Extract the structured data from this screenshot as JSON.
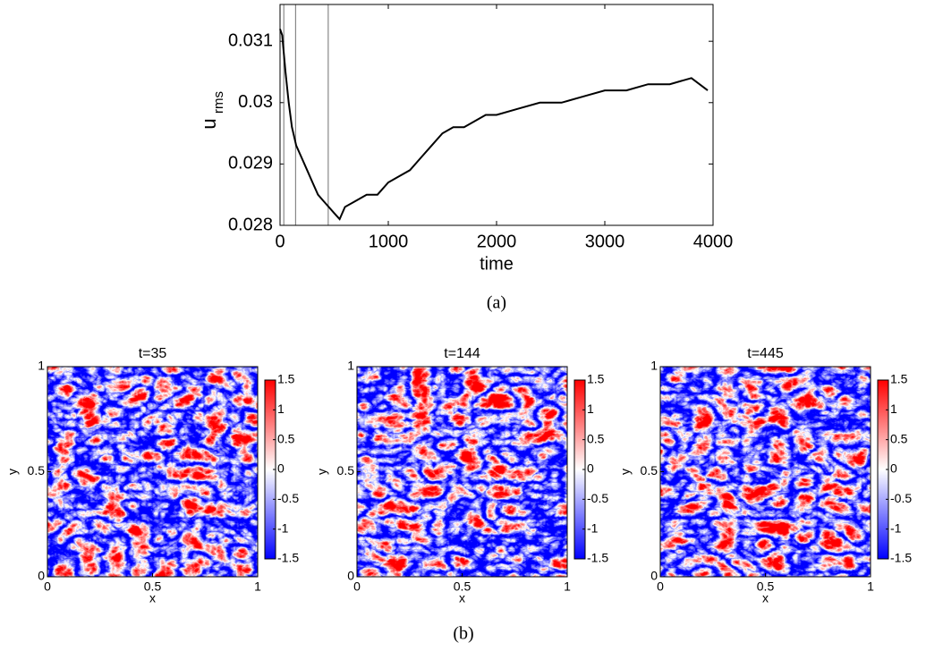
{
  "chart_data": [
    {
      "type": "line",
      "xlabel": "time",
      "ylabel": "u",
      "ylabel_sub": "rms",
      "x": [
        0,
        20,
        50,
        80,
        110,
        150,
        200,
        250,
        300,
        350,
        400,
        450,
        500,
        550,
        600,
        700,
        800,
        900,
        1000,
        1100,
        1200,
        1300,
        1400,
        1500,
        1600,
        1700,
        1800,
        1900,
        2000,
        2200,
        2400,
        2600,
        2800,
        3000,
        3200,
        3400,
        3600,
        3800,
        3950
      ],
      "values": [
        0.0312,
        0.0311,
        0.0305,
        0.03,
        0.0296,
        0.0293,
        0.0291,
        0.0289,
        0.0287,
        0.0285,
        0.0284,
        0.0283,
        0.0282,
        0.0281,
        0.0283,
        0.0284,
        0.0285,
        0.0285,
        0.0287,
        0.0288,
        0.0289,
        0.0291,
        0.0293,
        0.0295,
        0.0296,
        0.0296,
        0.0297,
        0.0298,
        0.0298,
        0.0299,
        0.03,
        0.03,
        0.0301,
        0.0302,
        0.0302,
        0.0303,
        0.0303,
        0.0304,
        0.0302
      ],
      "color": "#000000",
      "vlines": [
        35,
        144,
        445
      ],
      "vline_color": "#888888",
      "xlim": [
        0,
        4000
      ],
      "xticks": [
        0,
        1000,
        2000,
        3000,
        4000
      ],
      "ylim": [
        0.028,
        0.0316
      ],
      "yticks": [
        0.028,
        0.029,
        0.03,
        0.031
      ]
    },
    {
      "type": "heatmap",
      "title": "t=35",
      "xlabel": "x",
      "ylabel": "y",
      "seed": 3,
      "xlim": [
        0,
        1
      ],
      "xticks": [
        0,
        0.5,
        1
      ],
      "ylim": [
        0,
        1
      ],
      "yticks": [
        0,
        0.5,
        1
      ],
      "colorbar_lim": [
        -1.5,
        1.5
      ],
      "colorbar_ticks": [
        -1.5,
        -1,
        -0.5,
        0,
        0.5,
        1,
        1.5
      ],
      "colormap": [
        "#0000ff",
        "#ffffff",
        "#ff0000"
      ]
    },
    {
      "type": "heatmap",
      "title": "t=144",
      "xlabel": "x",
      "ylabel": "y",
      "seed": 11,
      "xlim": [
        0,
        1
      ],
      "xticks": [
        0,
        0.5,
        1
      ],
      "ylim": [
        0,
        1
      ],
      "yticks": [
        0,
        0.5,
        1
      ],
      "colorbar_lim": [
        -1.5,
        1.5
      ],
      "colorbar_ticks": [
        -1.5,
        -1,
        -0.5,
        0,
        0.5,
        1,
        1.5
      ],
      "colormap": [
        "#0000ff",
        "#ffffff",
        "#ff0000"
      ]
    },
    {
      "type": "heatmap",
      "title": "t=445",
      "xlabel": "x",
      "ylabel": "y",
      "seed": 27,
      "xlim": [
        0,
        1
      ],
      "xticks": [
        0,
        0.5,
        1
      ],
      "ylim": [
        0,
        1
      ],
      "yticks": [
        0,
        0.5,
        1
      ],
      "colorbar_lim": [
        -1.5,
        1.5
      ],
      "colorbar_ticks": [
        -1.5,
        -1,
        -0.5,
        0,
        0.5,
        1,
        1.5
      ],
      "colormap": [
        "#0000ff",
        "#ffffff",
        "#ff0000"
      ]
    }
  ],
  "captions": [
    "(a)",
    "(b)"
  ]
}
